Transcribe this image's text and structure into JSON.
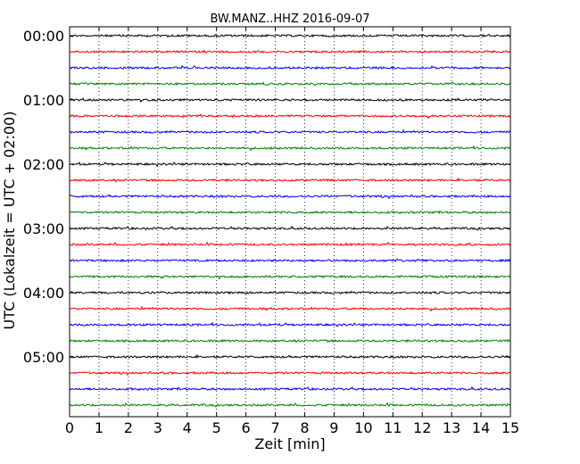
{
  "chart_data": {
    "type": "line",
    "title": "BW.MANZ..HHZ 2016-09-07",
    "xlabel": "Zeit  [min]",
    "ylabel": "UTC (Lokalzeit = UTC + 02:00)",
    "xlim": [
      0,
      15
    ],
    "x_ticks": [
      0,
      1,
      2,
      3,
      4,
      5,
      6,
      7,
      8,
      9,
      10,
      11,
      12,
      13,
      14,
      15
    ],
    "y_ticks": [
      {
        "label": "00:00",
        "hour": 0
      },
      {
        "label": "01:00",
        "hour": 1
      },
      {
        "label": "02:00",
        "hour": 2
      },
      {
        "label": "03:00",
        "hour": 3
      },
      {
        "label": "04:00",
        "hour": 4
      },
      {
        "label": "05:00",
        "hour": 5
      }
    ],
    "grid": "vertical dotted",
    "trace_interval_minutes": 15,
    "trace_count": 24,
    "trace_colors": [
      "#000000",
      "#ff0000",
      "#0000ff",
      "#008000"
    ]
  }
}
